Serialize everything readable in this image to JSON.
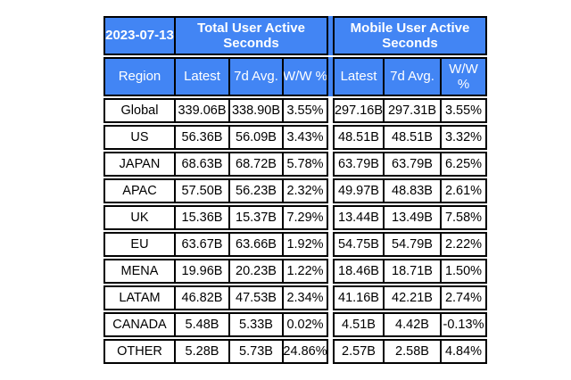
{
  "colors": {
    "header_bg": "#4285F4",
    "header_text": "#FFFFFF",
    "border": "#000000",
    "cell_bg": "#FFFFFF",
    "cell_text": "#000000",
    "page_bg": "#FFFFFF"
  },
  "chart_data": {
    "type": "table",
    "date": "2023-07-13",
    "region_column_header": "Region",
    "column_groups": [
      {
        "title": "Total User Active Seconds",
        "columns": [
          "Latest",
          "7d Avg.",
          "W/W %"
        ]
      },
      {
        "title": "Mobile User Active Seconds",
        "columns": [
          "Latest",
          "7d Avg.",
          "W/W %"
        ]
      }
    ],
    "rows": [
      {
        "region": "Global",
        "total": [
          "339.06B",
          "338.90B",
          "3.55%"
        ],
        "mobile": [
          "297.16B",
          "297.31B",
          "3.55%"
        ]
      },
      {
        "region": "US",
        "total": [
          "56.36B",
          "56.09B",
          "3.43%"
        ],
        "mobile": [
          "48.51B",
          "48.51B",
          "3.32%"
        ]
      },
      {
        "region": "JAPAN",
        "total": [
          "68.63B",
          "68.72B",
          "5.78%"
        ],
        "mobile": [
          "63.79B",
          "63.79B",
          "6.25%"
        ]
      },
      {
        "region": "APAC",
        "total": [
          "57.50B",
          "56.23B",
          "2.32%"
        ],
        "mobile": [
          "49.97B",
          "48.83B",
          "2.61%"
        ]
      },
      {
        "region": "UK",
        "total": [
          "15.36B",
          "15.37B",
          "7.29%"
        ],
        "mobile": [
          "13.44B",
          "13.49B",
          "7.58%"
        ]
      },
      {
        "region": "EU",
        "total": [
          "63.67B",
          "63.66B",
          "1.92%"
        ],
        "mobile": [
          "54.75B",
          "54.79B",
          "2.22%"
        ]
      },
      {
        "region": "MENA",
        "total": [
          "19.96B",
          "20.23B",
          "1.22%"
        ],
        "mobile": [
          "18.46B",
          "18.71B",
          "1.50%"
        ]
      },
      {
        "region": "LATAM",
        "total": [
          "46.82B",
          "47.53B",
          "2.34%"
        ],
        "mobile": [
          "41.16B",
          "42.21B",
          "2.74%"
        ]
      },
      {
        "region": "CANADA",
        "total": [
          "5.48B",
          "5.33B",
          "0.02%"
        ],
        "mobile": [
          "4.51B",
          "4.42B",
          "-0.13%"
        ]
      },
      {
        "region": "OTHER",
        "total": [
          "5.28B",
          "5.73B",
          "24.86%"
        ],
        "mobile": [
          "2.57B",
          "2.58B",
          "4.84%"
        ]
      }
    ]
  }
}
